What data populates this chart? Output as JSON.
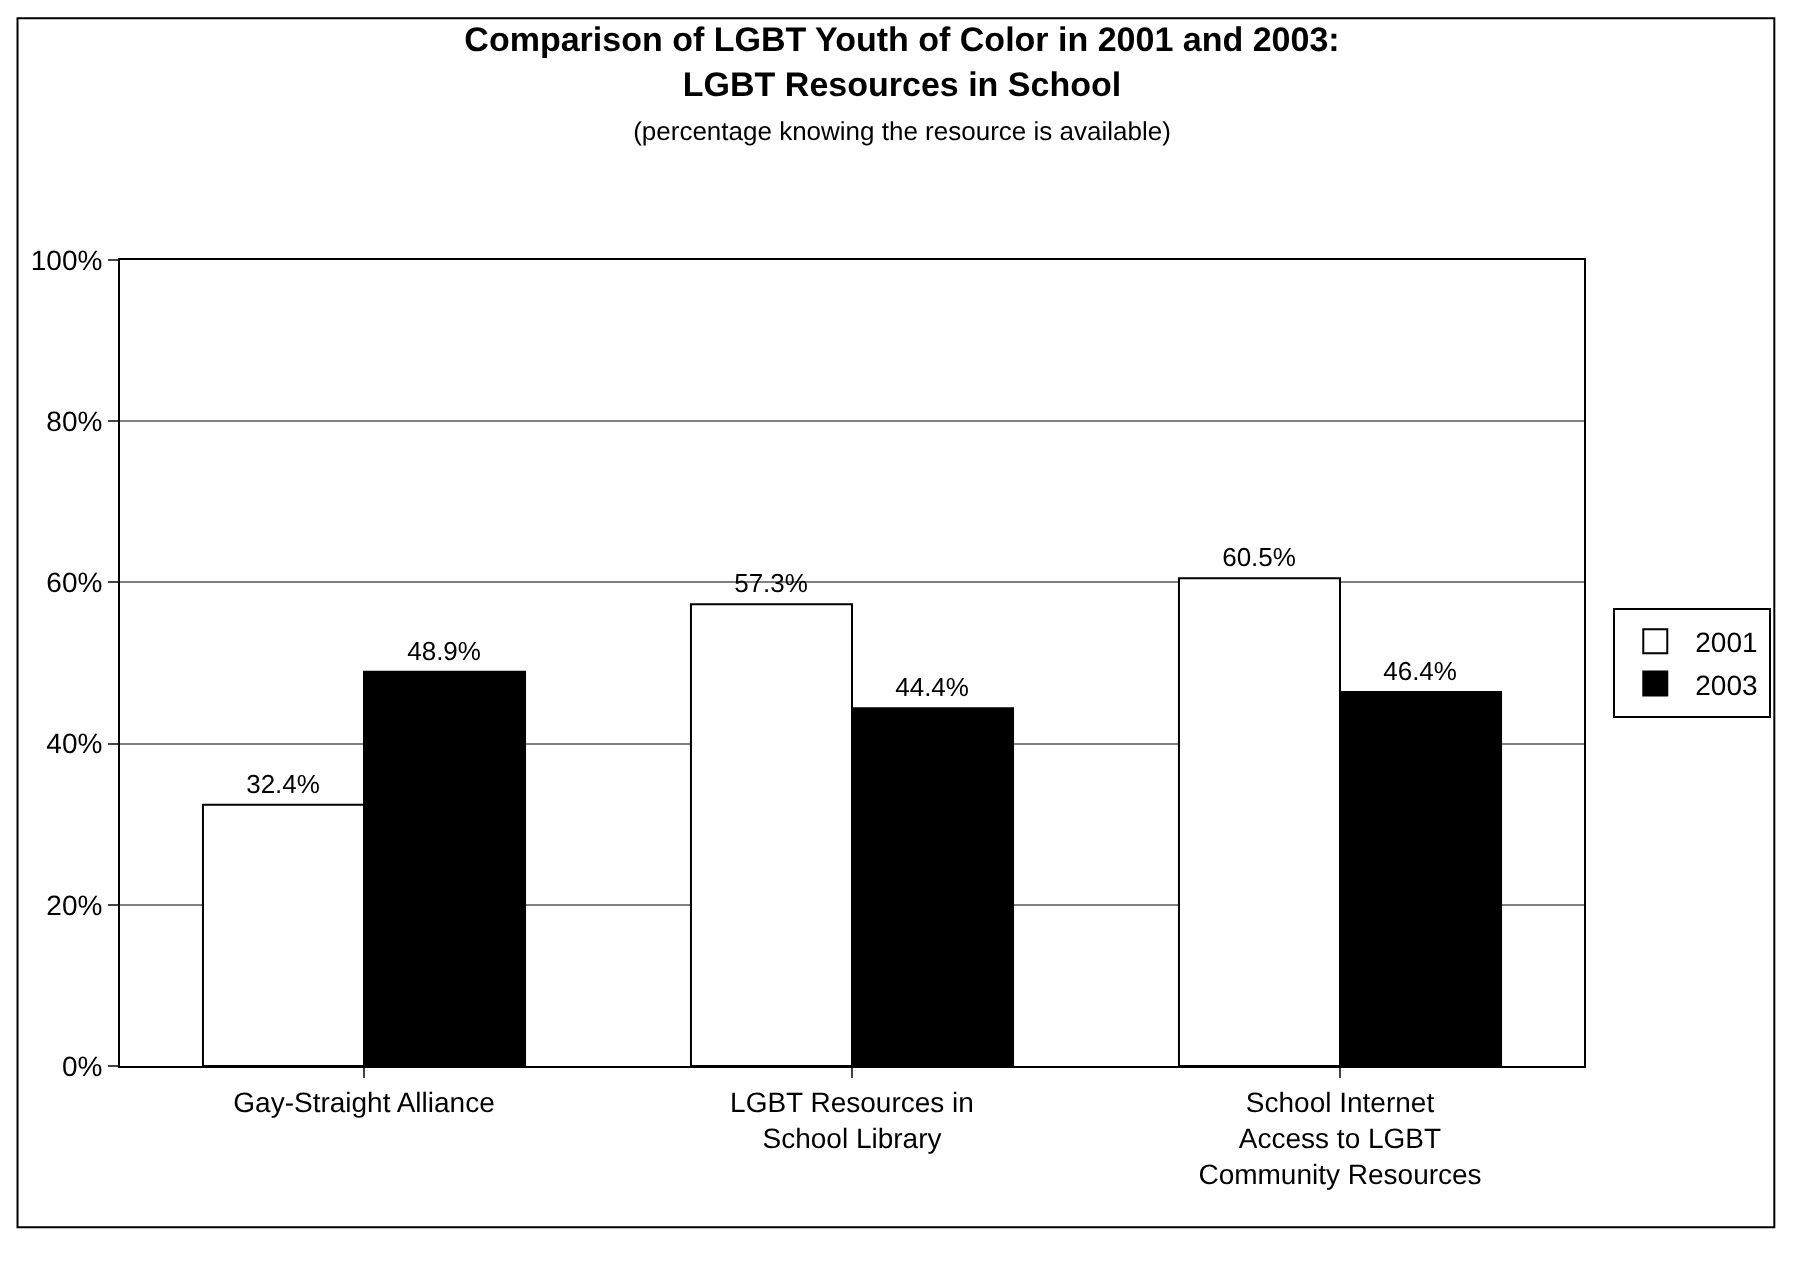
{
  "chart_data": {
    "type": "bar",
    "title": "Comparison of LGBT Youth of Color in 2001 and 2003:\nLGBT Resources in School",
    "subtitle": "(percentage knowing the resource is available)",
    "categories": [
      "Gay-Straight Alliance",
      "LGBT Resources in\nSchool Library",
      "School Internet\nAccess to LGBT\nCommunity Resources"
    ],
    "series": [
      {
        "name": "2001",
        "color": "#ffffff",
        "values": [
          32.4,
          57.3,
          60.5
        ],
        "value_labels": [
          "32.4%",
          "57.3%",
          "60.5%"
        ]
      },
      {
        "name": "2003",
        "color": "#000000",
        "values": [
          48.9,
          44.4,
          46.4
        ],
        "value_labels": [
          "48.9%",
          "44.4%",
          "46.4%"
        ]
      }
    ],
    "ylim": [
      0,
      100
    ],
    "yticks": [
      {
        "value": 0,
        "label": "0%"
      },
      {
        "value": 20,
        "label": "20%"
      },
      {
        "value": 40,
        "label": "40%"
      },
      {
        "value": 60,
        "label": "60%"
      },
      {
        "value": 80,
        "label": "80%"
      },
      {
        "value": 100,
        "label": "100%"
      }
    ],
    "grid": "y",
    "legend": "right"
  }
}
